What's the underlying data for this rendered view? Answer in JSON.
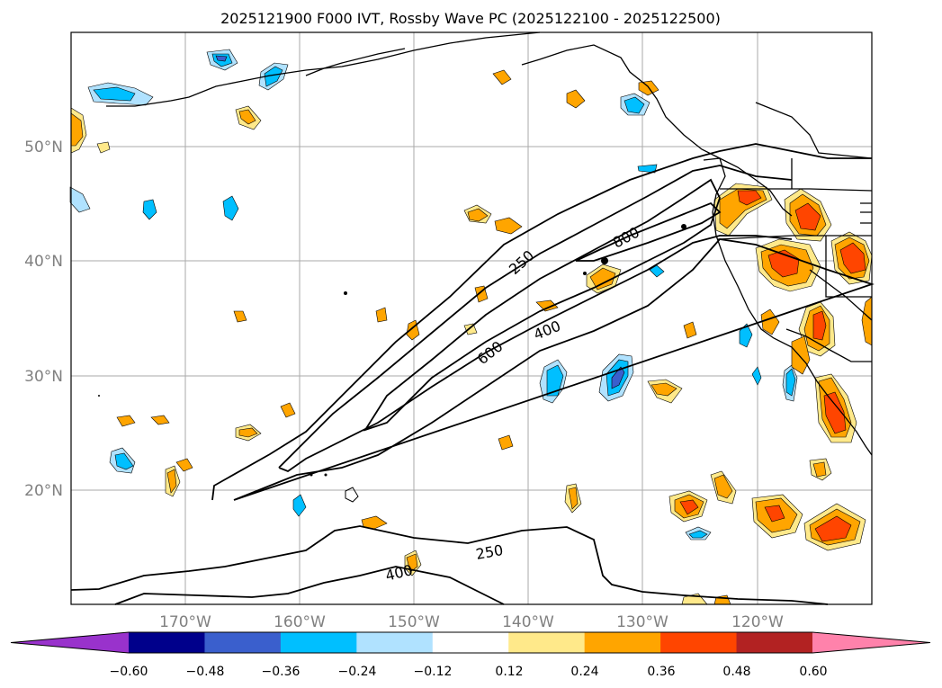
{
  "title": "2025121900 F000 IVT, Rossby Wave PC (2025122100 - 2025122500)",
  "map": {
    "lon_range": [
      -180,
      -110
    ],
    "lat_range": [
      10,
      60
    ],
    "lon_ticks": [
      "170°W",
      "160°W",
      "150°W",
      "140°W",
      "130°W",
      "120°W"
    ],
    "lat_ticks": [
      "20°N",
      "30°N",
      "40°N",
      "50°N"
    ],
    "gridlines": true
  },
  "ivt_contours": {
    "levels": [
      250,
      400,
      600,
      800
    ],
    "labels": [
      "250",
      "800",
      "600",
      "400",
      "250",
      "400"
    ]
  },
  "colorbar": {
    "orientation": "horizontal",
    "extend": "both",
    "tick_labels": [
      "−0.60",
      "−0.48",
      "−0.36",
      "−0.24",
      "−0.12",
      "0.12",
      "0.24",
      "0.36",
      "0.48",
      "0.60"
    ],
    "colors": [
      "#9932CC",
      "#00008B",
      "#3A5FCD",
      "#00BFFF",
      "#B0E2FF",
      "#FFFFFF",
      "#FFE98A",
      "#FFA500",
      "#FF4500",
      "#B22222",
      "#FF82AB"
    ]
  },
  "colors": {
    "coast": "#000000",
    "grid": "#aaaaaa",
    "tick_label": "#808080"
  }
}
